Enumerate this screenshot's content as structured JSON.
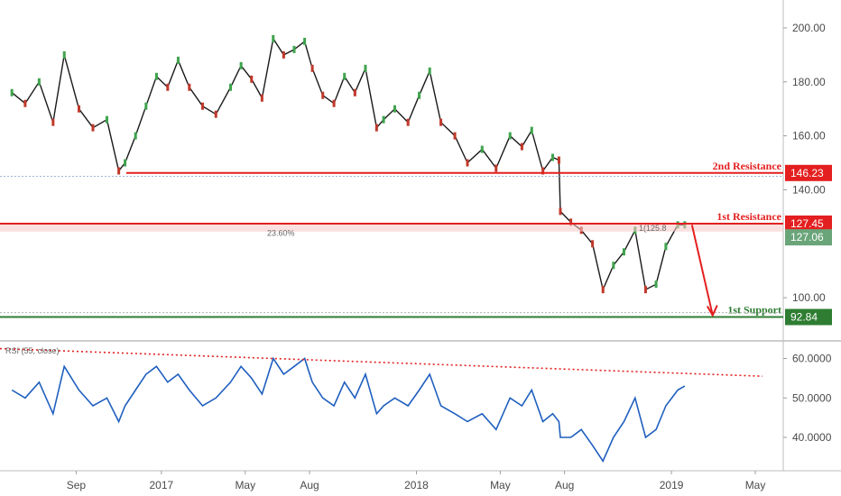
{
  "chart_data": {
    "type": "line",
    "main": {
      "ylim": [
        85,
        207
      ],
      "y_ticks": [
        "200.00",
        "180.00",
        "160.00",
        "140.00",
        "100.00"
      ],
      "x_ticks": [
        "Sep",
        "2017",
        "May",
        "Aug",
        "2018",
        "May",
        "Aug",
        "2019",
        "May"
      ],
      "price_series": {
        "x": [
          "2016-06-01",
          "2016-06-20",
          "2016-07-10",
          "2016-07-30",
          "2016-08-15",
          "2016-09-05",
          "2016-09-25",
          "2016-10-15",
          "2016-11-01",
          "2016-11-10",
          "2016-11-25",
          "2016-12-10",
          "2016-12-25",
          "2017-01-10",
          "2017-01-25",
          "2017-02-10",
          "2017-03-01",
          "2017-03-20",
          "2017-04-10",
          "2017-04-25",
          "2017-05-10",
          "2017-05-25",
          "2017-06-10",
          "2017-06-25",
          "2017-07-10",
          "2017-07-25",
          "2017-08-05",
          "2017-08-20",
          "2017-09-05",
          "2017-09-20",
          "2017-10-05",
          "2017-10-20",
          "2017-11-05",
          "2017-11-15",
          "2017-12-01",
          "2017-12-20",
          "2018-01-05",
          "2018-01-20",
          "2018-02-05",
          "2018-02-25",
          "2018-03-15",
          "2018-04-05",
          "2018-04-25",
          "2018-05-15",
          "2018-06-01",
          "2018-06-15",
          "2018-07-01",
          "2018-07-15",
          "2018-07-24",
          "2018-07-26",
          "2018-08-10",
          "2018-08-25",
          "2018-09-10",
          "2018-09-25",
          "2018-10-10",
          "2018-10-25",
          "2018-11-10",
          "2018-11-25",
          "2018-12-10",
          "2018-12-24",
          "2019-01-10",
          "2019-01-20"
        ],
        "values": [
          176,
          172,
          180,
          165,
          190,
          170,
          163,
          166,
          147,
          150,
          160,
          171,
          182,
          178,
          188,
          178,
          171,
          168,
          178,
          186,
          181,
          174,
          196,
          190,
          192,
          195,
          185,
          175,
          172,
          182,
          176,
          185,
          163,
          166,
          170,
          165,
          175,
          184,
          165,
          160,
          150,
          155,
          148,
          160,
          156,
          162,
          147,
          152,
          151,
          132,
          128,
          125,
          120,
          103,
          112,
          117,
          125,
          103,
          105,
          119,
          127,
          127
        ],
        "color": "#1a1a1a"
      },
      "levels": [
        {
          "label": "2nd Resistance",
          "value": 146.23,
          "badge": "146.23",
          "color": "#e41f1f"
        },
        {
          "label": "1st Resistance",
          "value": 127.45,
          "badge": "127.45",
          "color": "#e41f1f"
        },
        {
          "label": "1st Support",
          "value": 92.84,
          "badge": "92.84",
          "color": "#2e7d32"
        }
      ],
      "current_price": {
        "value": 127.06,
        "badge": "127.06",
        "color": "#6aa57a"
      },
      "fib_label": "23.60%",
      "fib_inline": "1(125.8",
      "projection": {
        "color": "#e41f1f"
      }
    },
    "rsi": {
      "label": "RSI (55, close)",
      "ylim": [
        32,
        64
      ],
      "y_ticks": [
        "60.0000",
        "50.0000",
        "40.0000"
      ],
      "values": [
        52,
        50,
        54,
        46,
        58,
        52,
        48,
        50,
        44,
        48,
        52,
        56,
        58,
        54,
        56,
        52,
        48,
        50,
        54,
        58,
        55,
        51,
        60,
        56,
        58,
        60,
        54,
        50,
        48,
        54,
        50,
        56,
        46,
        48,
        50,
        48,
        52,
        56,
        48,
        46,
        44,
        46,
        42,
        50,
        48,
        52,
        44,
        46,
        44,
        40,
        40,
        42,
        38,
        34,
        40,
        44,
        50,
        40,
        42,
        48,
        52,
        53
      ],
      "color": "#1f5fbf",
      "trend_color": "#e41f1f"
    }
  }
}
